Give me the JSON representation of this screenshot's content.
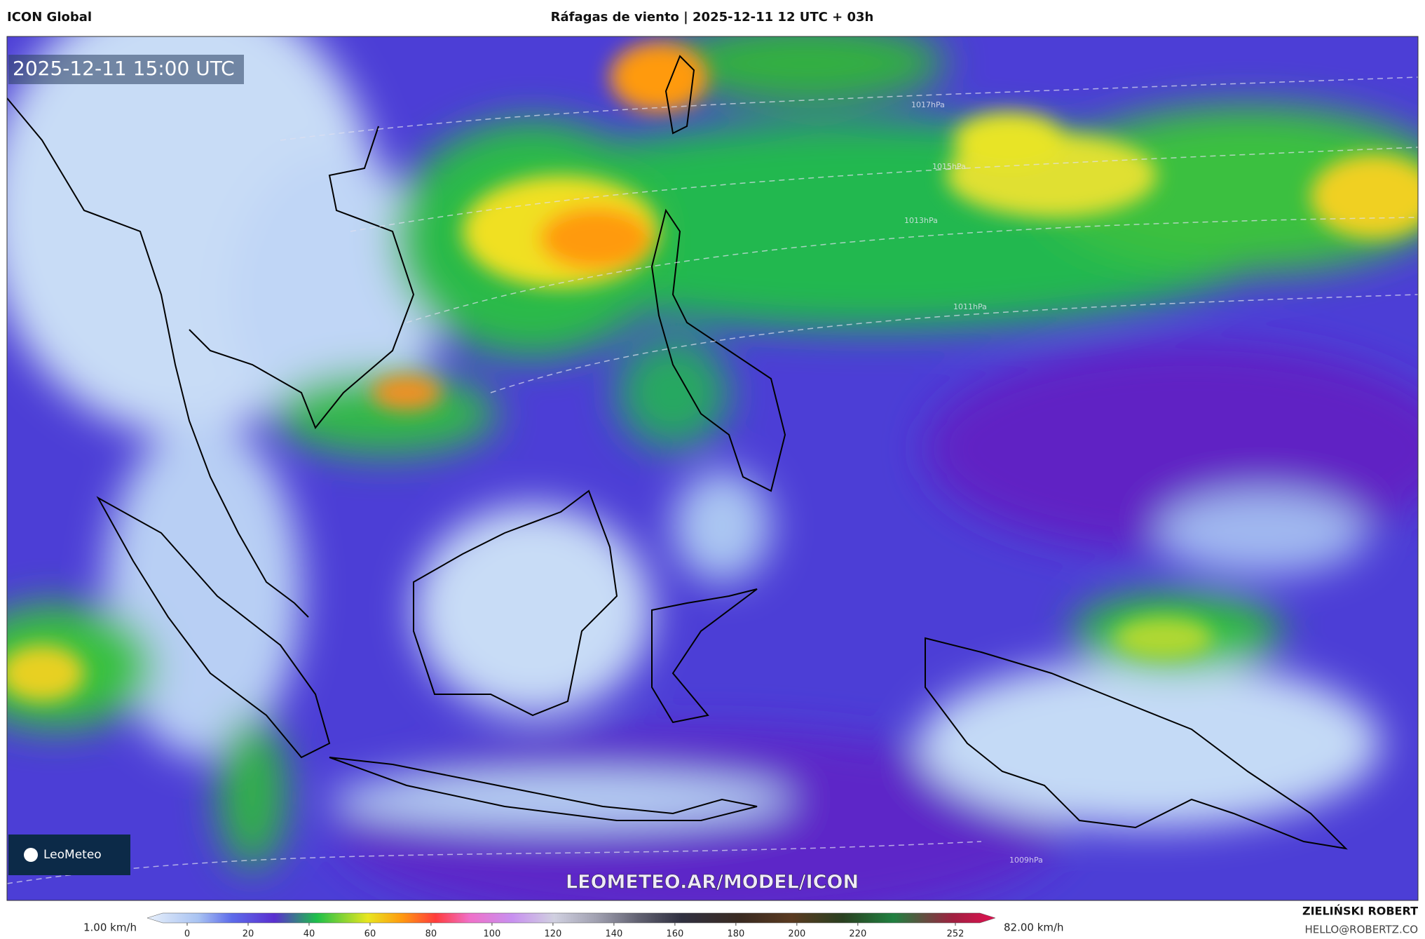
{
  "header": {
    "model": "ICON Global",
    "title": "Ráfagas de viento | 2025-12-11 12 UTC + 03h"
  },
  "map": {
    "timestamp": "2025-12-11 15:00 UTC",
    "logo": "LeoMeteo",
    "watermark": "LEOMETEO.AR/MODEL/ICON",
    "isobars": [
      "1017hPa",
      "1015hPa",
      "1013hPa",
      "1011hPa",
      "1009hPa"
    ]
  },
  "colorbar": {
    "min_label": "1.00 km/h",
    "max_label": "82.00 km/h",
    "ticks": [
      0,
      20,
      40,
      60,
      80,
      100,
      120,
      140,
      160,
      180,
      200,
      220,
      252
    ]
  },
  "footer": {
    "author": "ZIELIŃSKI ROBERT",
    "contact": "HELLO@ROBERTZ.CO"
  }
}
